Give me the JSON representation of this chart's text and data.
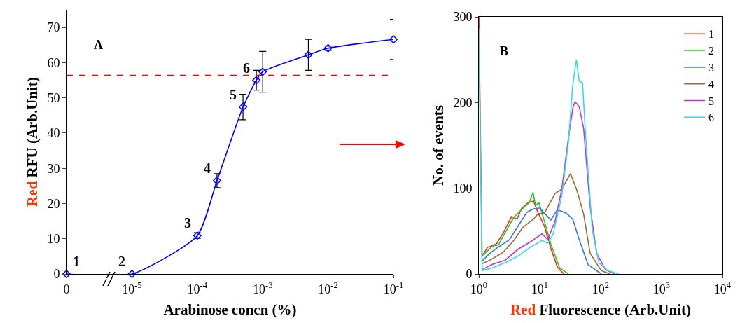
{
  "chart_data": [
    {
      "type": "line",
      "xlabel": "Arabinose concn (%)",
      "ylabel": "Red RFU (Arb.Unit)",
      "log": "x",
      "x": [
        1e-06,
        1e-05,
        0.0001,
        0.0002,
        0.0005,
        0.0008,
        0.001,
        0.005,
        0.01,
        0.1
      ],
      "series": [
        {
          "color": "#0000ff",
          "values": [
            0,
            0,
            10.9,
            26.5,
            47.4,
            55,
            57.4,
            62.2,
            64.1,
            66.6
          ],
          "errors": [
            null,
            null,
            0.8,
            2,
            3.6,
            2.8,
            5.8,
            4.4,
            0.6,
            5.7
          ]
        }
      ],
      "xlim": [
        1e-06,
        0.1
      ],
      "xticks": [
        {
          "value": 1e-06,
          "label": "0"
        },
        {
          "value": 1e-05,
          "label": "10$^{-5}$"
        },
        {
          "value": 0.0001,
          "label": "10$^{-4}$"
        },
        {
          "value": 0.001,
          "label": "10$^{-3}$"
        },
        {
          "value": 0.01,
          "label": "10$^{-2}$"
        },
        {
          "value": 0.1,
          "label": "10$^{-1}$"
        }
      ],
      "ylim": [
        0,
        75
      ],
      "yticks": [
        0,
        10,
        20,
        30,
        40,
        50,
        60,
        70
      ],
      "ref_lines": [
        {
          "axis": "y",
          "value": 56.4,
          "color": "#ff0000",
          "line_style": "dashed"
        }
      ],
      "annotations": [
        "A",
        {
          "text": "1",
          "x": 1e-06,
          "y": 0
        },
        {
          "text": "2",
          "x": 1e-05,
          "y": 0
        },
        {
          "text": "3",
          "x": 0.0001,
          "y": 10.9
        },
        {
          "text": "4",
          "x": 0.0002,
          "y": 26.5
        },
        {
          "text": "5",
          "x": 0.0005,
          "y": 47.4
        },
        {
          "text": "6",
          "x": 0.0008,
          "y": 55
        }
      ],
      "marker": "diamond",
      "line_style": "solid",
      "grid": false,
      "legend": false
    },
    {
      "type": "line",
      "xlabel": "Red Fluorescence (Arb.Unit)",
      "ylabel": "No. of events",
      "log": "x",
      "series": [
        {
          "name": "1",
          "color": "#ff2020",
          "x": [
            1,
            1.13,
            1.39,
            1.94,
            2.48,
            3.45,
            4.24,
            5.0,
            6.4,
            7.9,
            9.3,
            11.9,
            15.2,
            19.5,
            25
          ],
          "values": [
            300,
            21,
            31,
            35,
            47,
            67,
            64,
            76,
            83,
            85,
            72,
            56,
            30,
            8,
            0
          ]
        },
        {
          "name": "2",
          "color": "#22cc22",
          "x": [
            1.13,
            1.64,
            2.1,
            2.69,
            3.74,
            5.21,
            6.67,
            7.74,
            8.55,
            9.68,
            11.9,
            15.2,
            21.2,
            29.5
          ],
          "values": [
            21,
            32,
            34,
            48,
            66,
            76,
            83,
            95,
            80,
            83,
            62,
            35,
            7,
            0
          ]
        },
        {
          "name": "3",
          "color": "#3377dd",
          "x": [
            1.13,
            1.51,
            1.94,
            3.18,
            4.42,
            6.14,
            7.88,
            10.1,
            11.9,
            15.2,
            19.5,
            27.2,
            34.8,
            44.5,
            62,
            102
          ],
          "values": [
            15,
            24,
            30,
            40,
            56,
            72,
            76,
            77,
            71,
            63,
            75,
            71,
            64,
            40,
            11,
            0
          ]
        },
        {
          "name": "4",
          "color": "#a0673a",
          "x": [
            1.13,
            1.51,
            2.48,
            3.74,
            5.21,
            7.88,
            9.3,
            11.9,
            17.9,
            23,
            32,
            41,
            52.5,
            67.3,
            102,
            141
          ],
          "values": [
            12,
            16,
            25,
            39,
            54,
            64,
            70,
            71,
            94,
            99,
            117,
            97,
            70,
            24,
            4,
            0
          ]
        },
        {
          "name": "5",
          "color": "#cc33cc",
          "x": [
            1.13,
            1.64,
            2.69,
            4.42,
            7.25,
            10.9,
            13.5,
            17.9,
            23,
            29.5,
            34.8,
            37.8,
            44.5,
            52.5,
            67.3,
            86,
            120,
            167
          ],
          "values": [
            5,
            11,
            16,
            29,
            38,
            47,
            40,
            62,
            99,
            158,
            193,
            201,
            195,
            170,
            78,
            24,
            5,
            0
          ]
        },
        {
          "name": "6",
          "color": "#33dddd",
          "x": [
            1,
            1.13,
            1.64,
            2.69,
            4.42,
            7.25,
            10.9,
            13.5,
            16.5,
            23,
            29.5,
            34.8,
            40,
            44.5,
            50.4,
            57,
            73,
            93.6,
            130,
            197
          ],
          "values": [
            287,
            4,
            7,
            13,
            21,
            32,
            39,
            36,
            46,
            91,
            153,
            220,
            250,
            225,
            223,
            158,
            51,
            13,
            4,
            0
          ]
        }
      ],
      "xlim": [
        1,
        10000
      ],
      "xticks": [
        {
          "value": 1,
          "label": "10$^{0}$"
        },
        {
          "value": 10,
          "label": "10$^{1}$"
        },
        {
          "value": 100,
          "label": "10$^{2}$"
        },
        {
          "value": 1000,
          "label": "10$^{3}$"
        },
        {
          "value": 10000,
          "label": "10$^{4}$"
        }
      ],
      "ylim": [
        0,
        300
      ],
      "yticks": [
        0,
        100,
        200,
        300
      ],
      "annotations": [
        "B"
      ],
      "marker": "none",
      "line_style": "solid",
      "grid": false,
      "legend": "top right"
    }
  ]
}
